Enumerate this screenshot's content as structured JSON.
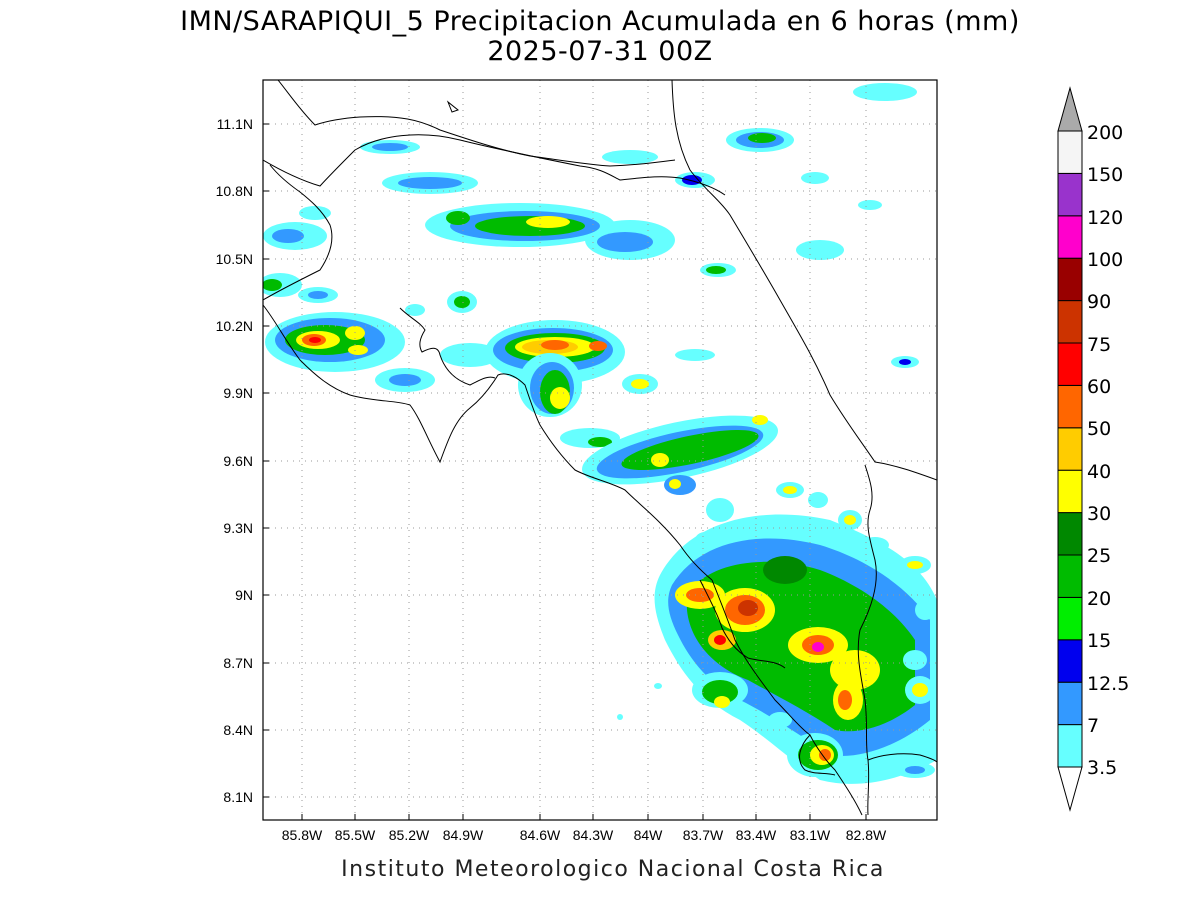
{
  "header": {
    "title": "IMN/SARAPIQUI_5 Precipitacion Acumulada en 6 horas (mm)",
    "subtitle": "2025-07-31 00Z"
  },
  "map": {
    "lon_range": [
      -86.0,
      -82.5
    ],
    "lat_range": [
      8.0,
      11.3
    ],
    "lon_ticks": [
      "85.8W",
      "85.5W",
      "85.2W",
      "84.9W",
      "84.6W",
      "84.3W",
      "84W",
      "83.7W",
      "83.4W",
      "83.1W",
      "82.8W"
    ],
    "lat_ticks": [
      "11.1N",
      "10.8N",
      "10.5N",
      "10.2N",
      "9.9N",
      "9.6N",
      "9.3N",
      "9N",
      "8.7N",
      "8.4N",
      "8.1N"
    ],
    "coastline_color": "#000000",
    "grid": "dotted"
  },
  "colorbar": {
    "labels": [
      "3.5",
      "7",
      "12.5",
      "15",
      "20",
      "25",
      "30",
      "40",
      "50",
      "60",
      "75",
      "90",
      "100",
      "120",
      "150",
      "200"
    ],
    "colors": [
      "#66ffff",
      "#3399ff",
      "#0000ee",
      "#00ee00",
      "#00bb00",
      "#008800",
      "#ffff00",
      "#ffcc00",
      "#ff6600",
      "#ff0000",
      "#cc3300",
      "#990000",
      "#ff00cc",
      "#9933cc",
      "#f5f5f5"
    ],
    "under_color": "#ffffff",
    "over_color": "#aaaaaa"
  },
  "footer": {
    "credit": "Instituto Meteorologico Nacional Costa Rica"
  }
}
